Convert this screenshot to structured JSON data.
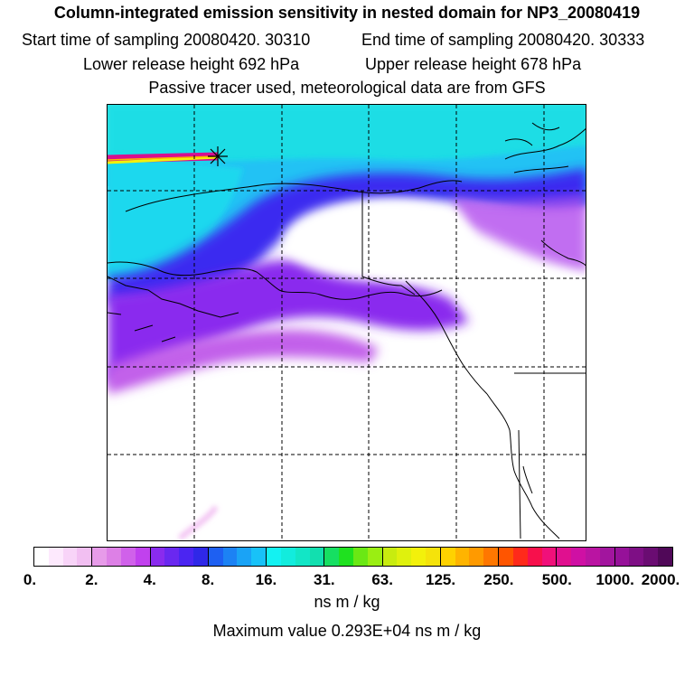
{
  "header": {
    "title": "Column-integrated emission sensitivity in nested domain for NP3_20080419",
    "start_label": "Start time of sampling 20080420. 30310",
    "end_label": "End time of sampling 20080420. 30333",
    "lower_label": "Lower release height  692 hPa",
    "upper_label": "Upper release height  678 hPa",
    "tracer_note": "Passive tracer used, meteorological data are from GFS"
  },
  "map": {
    "release_marker": "asterisk-release-point",
    "grid": "dashed lat/lon lines"
  },
  "colorbar": {
    "tick_labels": [
      "0.",
      "2.",
      "4.",
      "8.",
      "16.",
      "31.",
      "63.",
      "125.",
      "250.",
      "500.",
      "1000.",
      "2000."
    ],
    "segments": [
      [
        "#ffffff",
        "#fde9fd",
        "#f8d4f8",
        "#f2bff2"
      ],
      [
        "#e79be9",
        "#dd80e6",
        "#d061ea",
        "#c141ee"
      ],
      [
        "#8a2bee",
        "#6a28f0",
        "#4b25f2",
        "#2f28e8"
      ],
      [
        "#1e60f2",
        "#1c82f4",
        "#1aa3f6",
        "#18c2f8"
      ],
      [
        "#13f2f2",
        "#12ecdd",
        "#12e6c6",
        "#12dfaf"
      ],
      [
        "#16df62",
        "#1fe11f",
        "#6ae814",
        "#9aee12"
      ],
      [
        "#c8ec0f",
        "#dff10d",
        "#f3f10b",
        "#f5e30b"
      ],
      [
        "#ffd200",
        "#ffb400",
        "#ff9a00",
        "#ff7700"
      ],
      [
        "#ff5500",
        "#ff2a1a",
        "#f7104c",
        "#f0107a"
      ],
      [
        "#e0108f",
        "#cf10a4",
        "#ba14a2",
        "#a2159e"
      ],
      [
        "#961199",
        "#7e0f85",
        "#6a0c72",
        "#500858"
      ]
    ],
    "units": "ns m / kg",
    "max_value_label": "Maximum value  0.293E+04 ns m / kg"
  }
}
